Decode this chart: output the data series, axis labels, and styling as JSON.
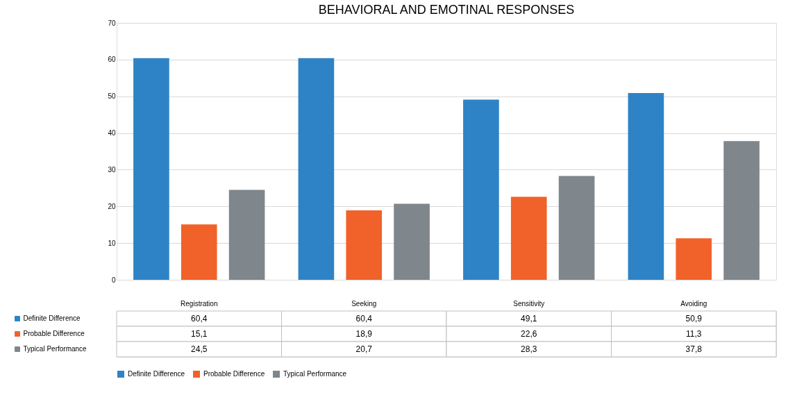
{
  "chart_data": {
    "type": "bar",
    "title": "BEHAVIORAL AND EMOTINAL RESPONSES",
    "categories": [
      "Registration",
      "Seeking",
      "Sensitivity",
      "Avoiding"
    ],
    "series": [
      {
        "name": "Definite Difference",
        "color": "#2e83c6",
        "values": [
          60.4,
          60.4,
          49.1,
          50.9
        ],
        "value_labels": [
          "60,4",
          "60,4",
          "49,1",
          "50,9"
        ]
      },
      {
        "name": "Probable Difference",
        "color": "#f0622a",
        "values": [
          15.1,
          18.9,
          22.6,
          11.3
        ],
        "value_labels": [
          "15,1",
          "18,9",
          "22,6",
          "11,3"
        ]
      },
      {
        "name": "Typical Performance",
        "color": "#7f868c",
        "values": [
          24.5,
          20.7,
          28.3,
          37.8
        ],
        "value_labels": [
          "24,5",
          "20,7",
          "28,3",
          "37,8"
        ]
      }
    ],
    "ylim": [
      0,
      70
    ],
    "yticks": [
      0,
      10,
      20,
      30,
      40,
      50,
      60,
      70
    ],
    "grid": "y",
    "legend": "bottom"
  }
}
